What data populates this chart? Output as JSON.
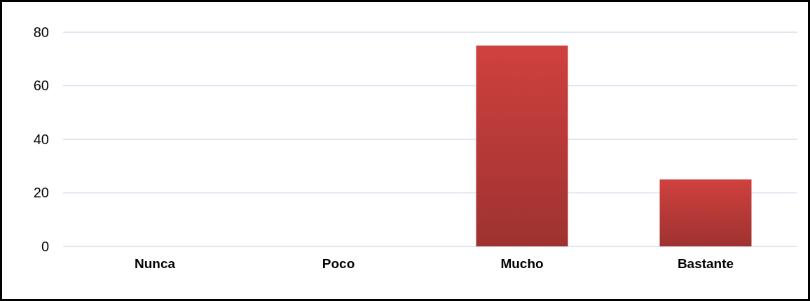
{
  "chart_data": {
    "type": "bar",
    "categories": [
      "Nunca",
      "Poco",
      "Mucho",
      "Bastante"
    ],
    "values": [
      0,
      0,
      75,
      25
    ],
    "color": "#c43e3b",
    "ylim": [
      0,
      80
    ],
    "yticks": [
      0,
      20,
      40,
      60,
      80
    ],
    "grid": "y"
  }
}
